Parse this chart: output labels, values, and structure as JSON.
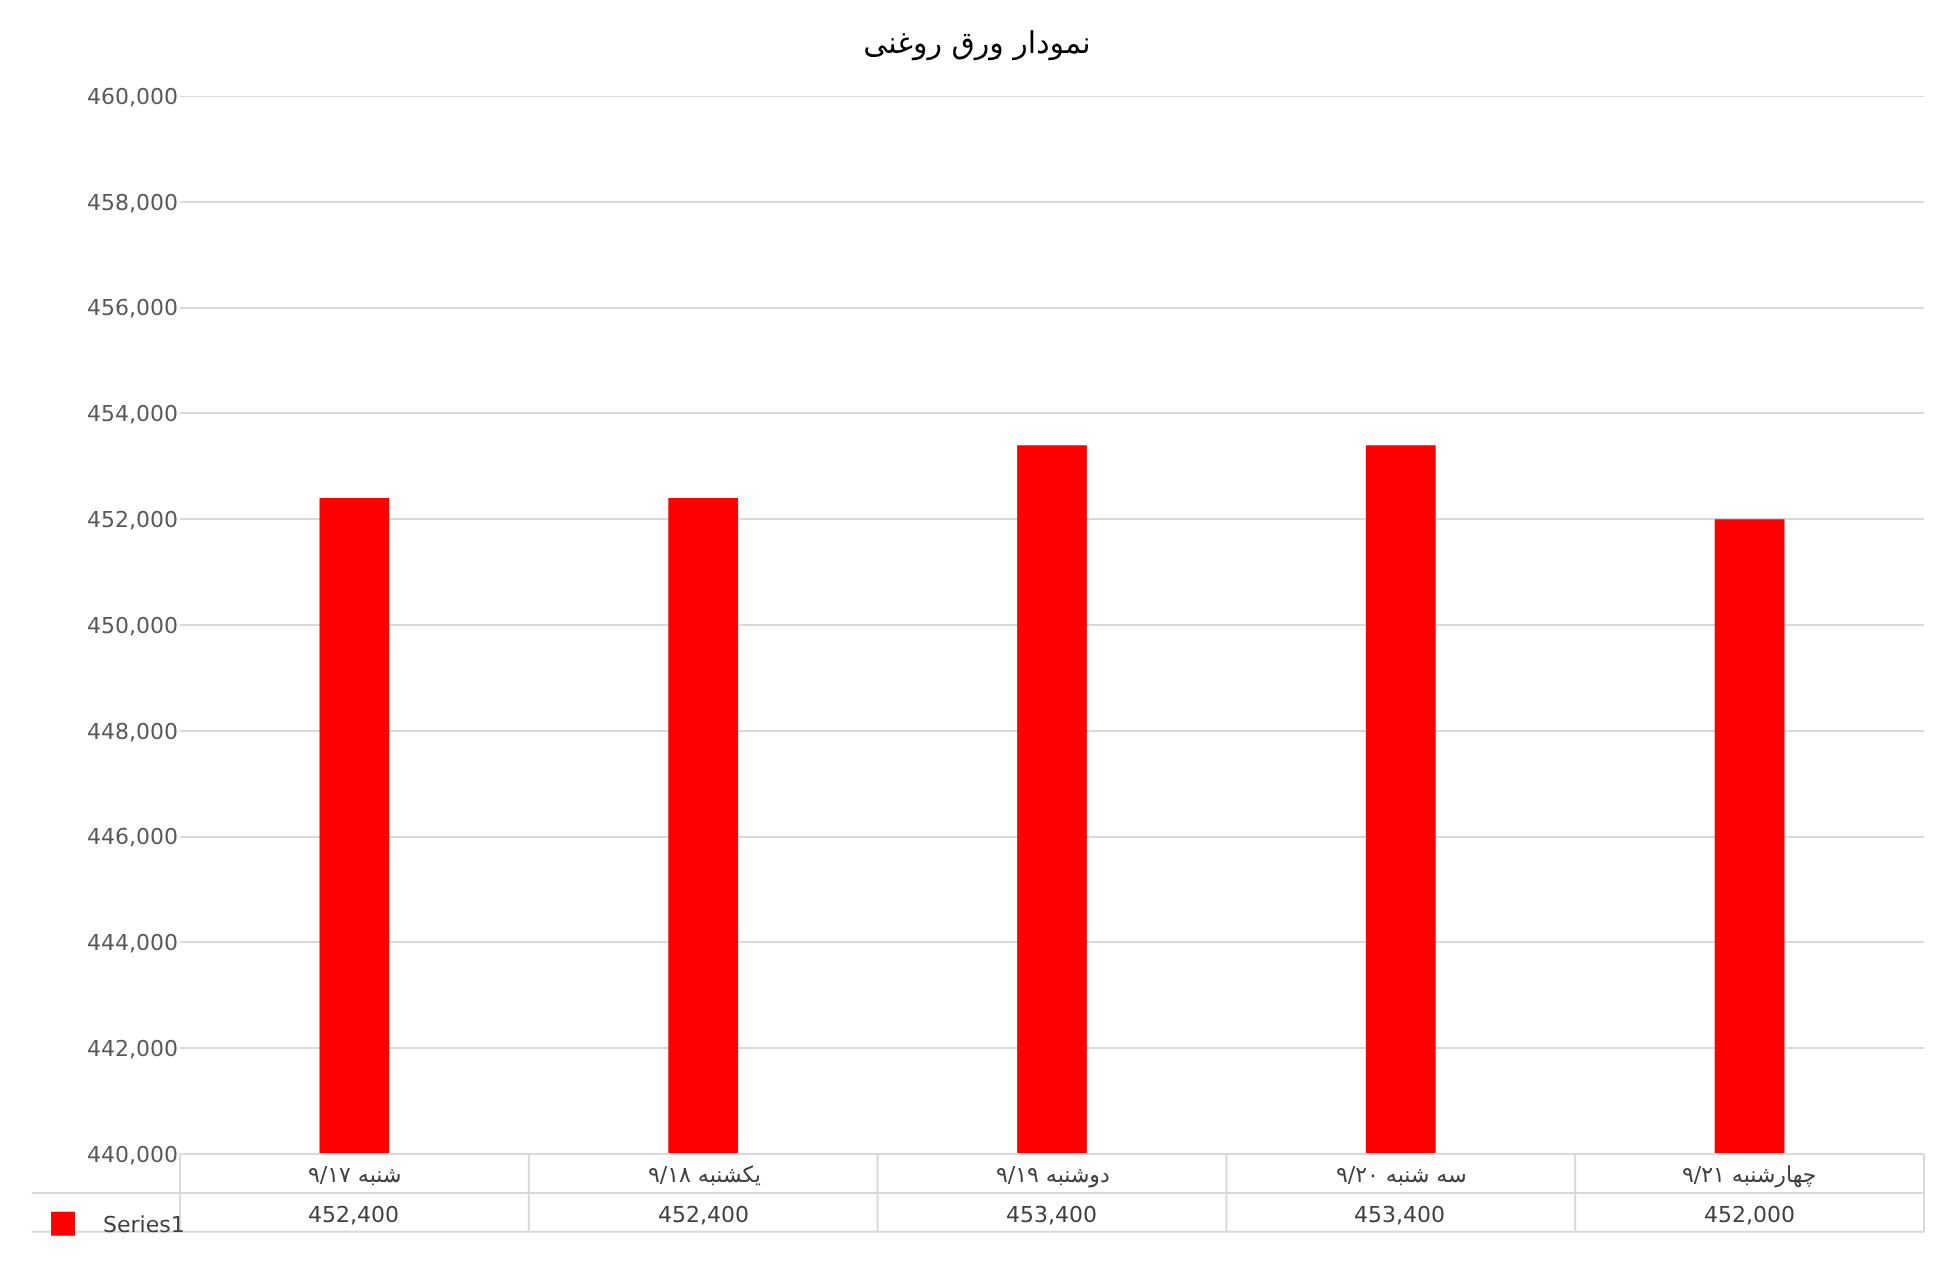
{
  "chart_data": {
    "type": "bar",
    "title": "نمودار ورق روغنی",
    "categories": [
      "شنبه ۹/۱۷",
      "یکشنبه ۹/۱۸",
      "دوشنبه ۹/۱۹",
      "سه شنبه ۹/۲۰",
      "چهارشنبه ۹/۲۱"
    ],
    "series": [
      {
        "name": "Series1",
        "color": "#ff0000",
        "values": [
          452400,
          452400,
          453400,
          453400,
          452000
        ],
        "value_labels": [
          "452,400",
          "452,400",
          "453,400",
          "453,400",
          "452,000"
        ]
      }
    ],
    "ylim": [
      440000,
      460000
    ],
    "yticks": [
      {
        "value": 440000,
        "label": "440,000"
      },
      {
        "value": 442000,
        "label": "442,000"
      },
      {
        "value": 444000,
        "label": "444,000"
      },
      {
        "value": 446000,
        "label": "446,000"
      },
      {
        "value": 448000,
        "label": "448,000"
      },
      {
        "value": 450000,
        "label": "450,000"
      },
      {
        "value": 452000,
        "label": "452,000"
      },
      {
        "value": 454000,
        "label": "454,000"
      },
      {
        "value": 456000,
        "label": "456,000"
      },
      {
        "value": 458000,
        "label": "458,000"
      },
      {
        "value": 460000,
        "label": "460,000"
      }
    ],
    "grid": true,
    "legend": "bottom left"
  }
}
